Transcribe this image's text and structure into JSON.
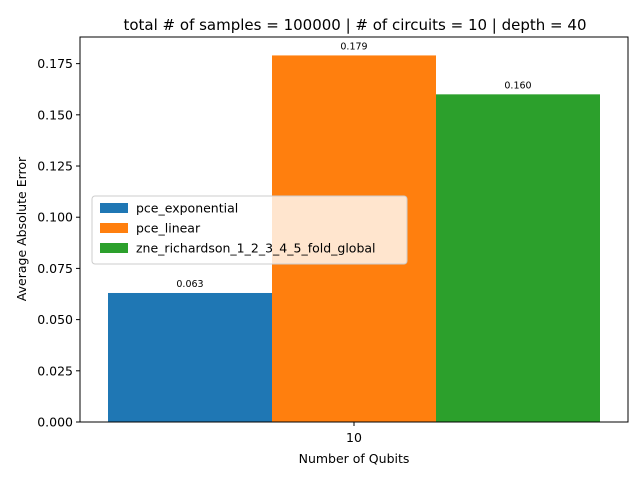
{
  "chart_data": {
    "type": "bar",
    "title": "total # of samples = 100000 | # of circuits = 10 | depth = 40",
    "xlabel": "Number of Qubits",
    "ylabel": "Average Absolute Error",
    "categories": [
      "10"
    ],
    "series": [
      {
        "name": "pce_exponential",
        "values": [
          0.063
        ],
        "label": "0.063",
        "color": "#1f77b4"
      },
      {
        "name": "pce_linear",
        "values": [
          0.179
        ],
        "label": "0.179",
        "color": "#ff7f0e"
      },
      {
        "name": "zne_richardson_1_2_3_4_5_fold_global",
        "values": [
          0.16
        ],
        "label": "0.160",
        "color": "#2ca02c"
      }
    ],
    "ylim": [
      0,
      0.188
    ],
    "yticks": [
      "0.000",
      "0.025",
      "0.050",
      "0.075",
      "0.100",
      "0.125",
      "0.150",
      "0.175"
    ],
    "grid": false,
    "legend_position": "center-left"
  }
}
